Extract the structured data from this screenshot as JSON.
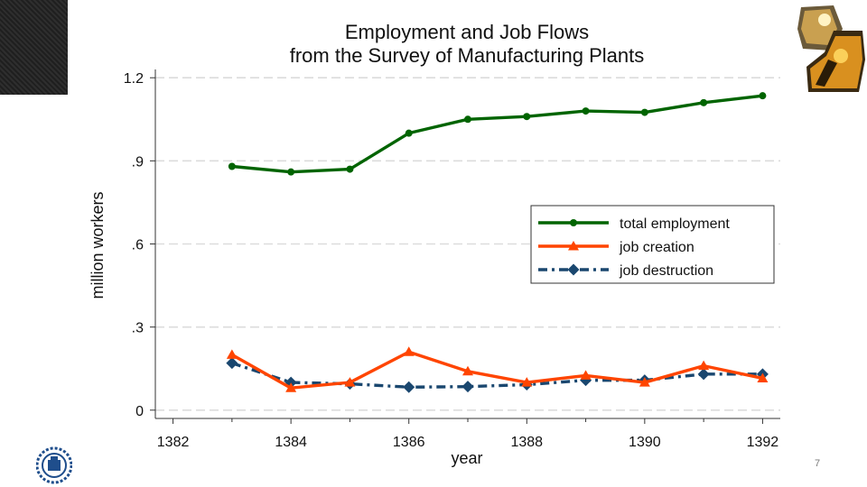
{
  "slide": {
    "page_number": "7"
  },
  "chart_data": {
    "type": "line",
    "title": "Employment and Job Flows",
    "subtitle": "from the Survey of Manufacturing Plants",
    "xlabel": "year",
    "ylabel": "million workers",
    "xlim": [
      1381.7,
      1392.3
    ],
    "ylim": [
      -0.03,
      1.23
    ],
    "xticks": [
      1382,
      1384,
      1386,
      1388,
      1390,
      1392
    ],
    "xtick_labels": [
      "1382",
      "1384",
      "1386",
      "1388",
      "1390",
      "1392"
    ],
    "yticks": [
      0,
      0.3,
      0.6,
      0.9,
      1.2
    ],
    "ytick_labels": [
      "0",
      ".3",
      ".6",
      ".9",
      "1.2"
    ],
    "grid": true,
    "legend_position": "center-right",
    "series": [
      {
        "name": "total employment",
        "color": "#006400",
        "marker": "circle",
        "line": "solid",
        "x": [
          1383,
          1384,
          1385,
          1386,
          1387,
          1388,
          1389,
          1390,
          1391,
          1392
        ],
        "values": [
          0.88,
          0.86,
          0.87,
          1.0,
          1.05,
          1.06,
          1.08,
          1.075,
          1.11,
          1.135
        ]
      },
      {
        "name": "job creation",
        "color": "#ff4500",
        "marker": "triangle",
        "line": "solid",
        "x": [
          1383,
          1384,
          1385,
          1386,
          1387,
          1388,
          1389,
          1390,
          1391,
          1392
        ],
        "values": [
          0.2,
          0.08,
          0.1,
          0.21,
          0.14,
          0.1,
          0.125,
          0.1,
          0.16,
          0.115
        ]
      },
      {
        "name": "job destruction",
        "color": "#1a476f",
        "marker": "diamond",
        "line": "dashdot",
        "x": [
          1383,
          1384,
          1385,
          1386,
          1387,
          1388,
          1389,
          1390,
          1391,
          1392
        ],
        "values": [
          0.17,
          0.1,
          0.095,
          0.083,
          0.085,
          0.092,
          0.108,
          0.108,
          0.13,
          0.13
        ]
      }
    ]
  }
}
